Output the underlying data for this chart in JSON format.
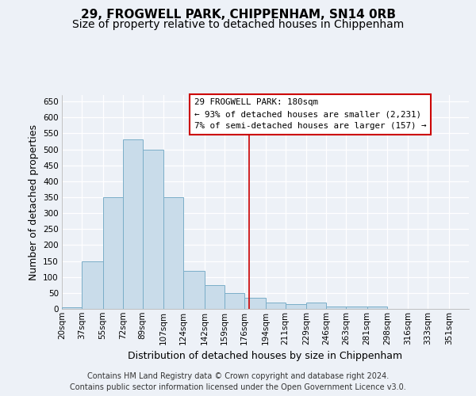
{
  "title": "29, FROGWELL PARK, CHIPPENHAM, SN14 0RB",
  "subtitle": "Size of property relative to detached houses in Chippenham",
  "xlabel": "Distribution of detached houses by size in Chippenham",
  "ylabel": "Number of detached properties",
  "footer_line1": "Contains HM Land Registry data © Crown copyright and database right 2024.",
  "footer_line2": "Contains public sector information licensed under the Open Government Licence v3.0.",
  "annotation_line1": "29 FROGWELL PARK: 180sqm",
  "annotation_line2": "← 93% of detached houses are smaller (2,231)",
  "annotation_line3": "7% of semi-detached houses are larger (157) →",
  "bar_color": "#c9dcea",
  "bar_edge_color": "#7aaec8",
  "vline_color": "#cc0000",
  "vline_x": 180,
  "ylim": [
    0,
    670
  ],
  "yticks": [
    0,
    50,
    100,
    150,
    200,
    250,
    300,
    350,
    400,
    450,
    500,
    550,
    600,
    650
  ],
  "bins": [
    20,
    37,
    55,
    72,
    89,
    107,
    124,
    142,
    159,
    176,
    194,
    211,
    229,
    246,
    263,
    281,
    298,
    316,
    333,
    351,
    368
  ],
  "heights": [
    4,
    150,
    350,
    530,
    500,
    350,
    120,
    75,
    50,
    35,
    20,
    15,
    20,
    8,
    8,
    8,
    0,
    0,
    0,
    0
  ],
  "background_color": "#edf1f7",
  "grid_color": "#ffffff",
  "title_fontsize": 11,
  "subtitle_fontsize": 10,
  "axis_label_fontsize": 9,
  "tick_fontsize": 7.5,
  "footer_fontsize": 7
}
